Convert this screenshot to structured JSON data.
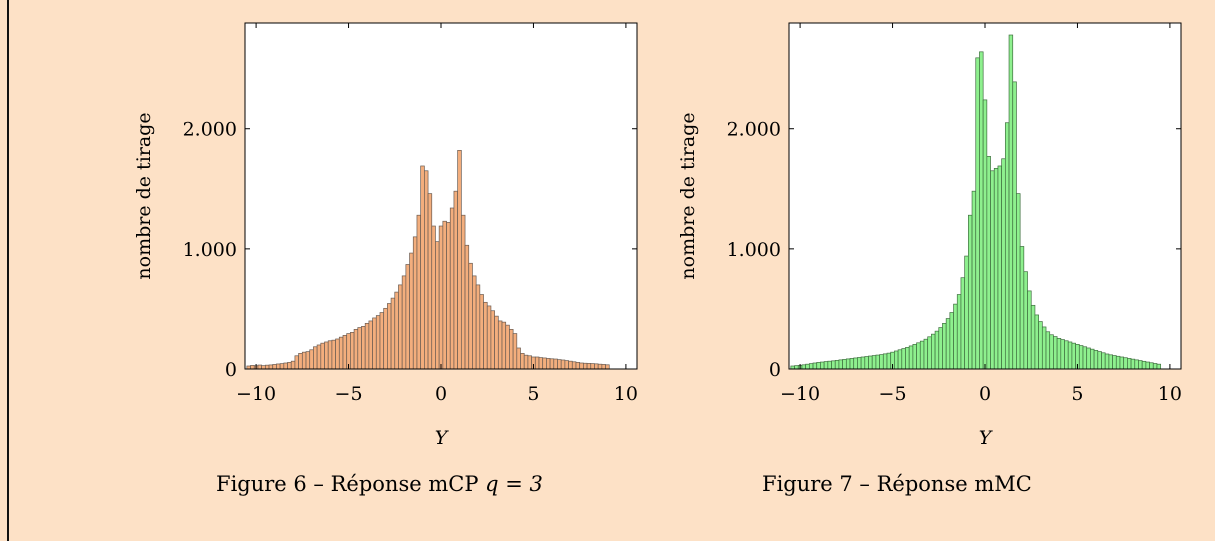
{
  "page": {
    "background": "#fde1c6"
  },
  "figures": [
    {
      "caption_prefix": "Figure 6 – Réponse mCP",
      "caption_math": "q = 3"
    },
    {
      "caption_prefix": "Figure 7 – Réponse mMC",
      "caption_math": ""
    }
  ],
  "chart_data": [
    {
      "type": "bar",
      "ylabel": "nombre de tirage",
      "xlabel": "Y",
      "xlim": [
        -10.6,
        10.6
      ],
      "ylim": [
        0,
        2880
      ],
      "xticks": [
        -10,
        -5,
        0,
        5,
        10
      ],
      "xtick_labels": [
        "−10",
        "−5",
        "0",
        "5",
        "10"
      ],
      "yticks": [
        0,
        1000,
        2000
      ],
      "ytick_labels": [
        "0",
        "1.000",
        "2.000"
      ],
      "bar_fill": "#f3ae7d",
      "bar_stroke": "#6b5c52",
      "bin_start": -10.5,
      "bin_width": 0.2,
      "values": [
        25,
        30,
        27,
        33,
        28,
        32,
        34,
        38,
        42,
        45,
        50,
        55,
        65,
        110,
        130,
        140,
        145,
        160,
        185,
        200,
        215,
        225,
        235,
        240,
        250,
        265,
        280,
        295,
        305,
        330,
        345,
        355,
        380,
        400,
        425,
        445,
        470,
        505,
        545,
        590,
        640,
        700,
        775,
        870,
        965,
        1100,
        1280,
        1690,
        1650,
        1460,
        1190,
        1060,
        1190,
        1230,
        1220,
        1340,
        1480,
        1820,
        1280,
        1030,
        880,
        775,
        700,
        620,
        555,
        525,
        485,
        440,
        400,
        390,
        365,
        330,
        295,
        175,
        130,
        115,
        110,
        100,
        100,
        95,
        92,
        88,
        85,
        83,
        78,
        75,
        70,
        65,
        60,
        55,
        50,
        48,
        47,
        45,
        43,
        40,
        38,
        35
      ]
    },
    {
      "type": "bar",
      "ylabel": "nombre de tirage",
      "xlabel": "Y",
      "xlim": [
        -10.6,
        10.6
      ],
      "ylim": [
        0,
        2880
      ],
      "xticks": [
        -10,
        -5,
        0,
        5,
        10
      ],
      "xtick_labels": [
        "−10",
        "−5",
        "0",
        "5",
        "10"
      ],
      "yticks": [
        0,
        1000,
        2000
      ],
      "ytick_labels": [
        "0",
        "1.000",
        "2.000"
      ],
      "bar_fill": "#8ef08e",
      "bar_stroke": "#3f6f3f",
      "bin_start": -10.5,
      "bin_width": 0.2,
      "values": [
        25,
        28,
        30,
        35,
        40,
        45,
        50,
        55,
        58,
        62,
        65,
        68,
        72,
        76,
        80,
        84,
        88,
        92,
        96,
        100,
        104,
        108,
        112,
        116,
        120,
        126,
        132,
        140,
        150,
        160,
        170,
        180,
        192,
        205,
        218,
        232,
        248,
        268,
        290,
        315,
        345,
        380,
        420,
        470,
        540,
        620,
        760,
        940,
        1280,
        1480,
        2590,
        2640,
        2240,
        1770,
        1650,
        1670,
        1690,
        1750,
        2050,
        2780,
        2390,
        1460,
        1020,
        810,
        650,
        530,
        450,
        395,
        350,
        310,
        285,
        270,
        255,
        245,
        235,
        225,
        215,
        205,
        195,
        185,
        175,
        165,
        155,
        145,
        135,
        125,
        118,
        112,
        106,
        100,
        94,
        88,
        82,
        76,
        70,
        64,
        58,
        52,
        46,
        40
      ]
    }
  ]
}
